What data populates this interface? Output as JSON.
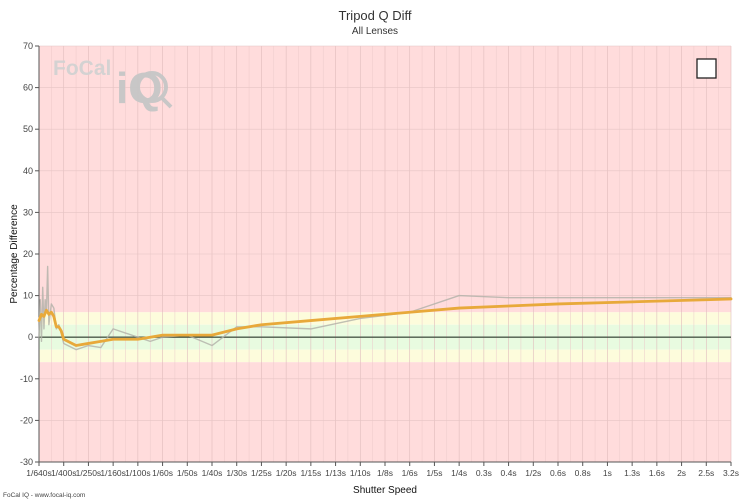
{
  "chart_data": {
    "type": "line",
    "title": "Tripod Q Diff",
    "subtitle": "All Lenses",
    "xlabel": "Shutter Speed",
    "ylabel": "Percentage Difference",
    "ylim": [
      -30,
      70
    ],
    "yticks": [
      70,
      60,
      50,
      40,
      30,
      20,
      10,
      0,
      -10,
      -20,
      -30
    ],
    "categories": [
      "1/640s",
      "1/400s",
      "1/250s",
      "1/160s",
      "1/100s",
      "1/60s",
      "1/50s",
      "1/40s",
      "1/30s",
      "1/25s",
      "1/20s",
      "1/15s",
      "1/13s",
      "1/10s",
      "1/8s",
      "1/6s",
      "1/5s",
      "1/4s",
      "0.3s",
      "0.4s",
      "1/2s",
      "0.6s",
      "0.8s",
      "1s",
      "1.3s",
      "1.6s",
      "2s",
      "2.5s",
      "3.2s"
    ],
    "bands": [
      {
        "from": 6,
        "to": 70,
        "color": "#ffdcdc"
      },
      {
        "from": 3,
        "to": 6,
        "color": "#fdfcdc"
      },
      {
        "from": -3,
        "to": 3,
        "color": "#e8fbe0"
      },
      {
        "from": -6,
        "to": -3,
        "color": "#fdfcdc"
      },
      {
        "from": -30,
        "to": -6,
        "color": "#ffdcdc"
      }
    ],
    "grid": true,
    "series": [
      {
        "color": "#b0b0a8",
        "x": [
          0,
          0.05,
          0.1,
          0.15,
          0.2,
          0.25,
          0.3,
          0.35,
          0.4,
          0.5,
          0.6,
          0.7,
          0.8,
          0.9,
          1.0,
          1.5,
          2.0,
          2.5,
          3.0,
          3.5,
          4.0,
          4.5,
          5.0,
          6.0,
          7.0,
          8.0,
          9.0,
          11.0,
          13.0,
          15.0,
          17.0,
          19.0,
          20.0,
          21.0,
          22.0,
          24.0,
          27.0,
          28.0
        ],
        "values": [
          0,
          9,
          -1,
          12,
          2,
          9,
          6,
          17,
          3,
          8,
          7,
          2,
          3,
          1,
          -1.5,
          -3,
          -2,
          -2.5,
          2,
          1,
          0,
          -1,
          0,
          0.5,
          -2,
          2.5,
          2.5,
          2,
          4.5,
          6,
          10,
          9.5,
          9.5,
          9.5,
          9.5,
          9.5,
          9.5,
          9.5
        ]
      },
      {
        "color": "#e8a93a",
        "x": [
          0,
          0.1,
          0.2,
          0.3,
          0.4,
          0.5,
          0.6,
          0.7,
          0.8,
          0.9,
          1.0,
          1.5,
          2.0,
          2.5,
          3.0,
          3.5,
          4.0,
          4.5,
          5.0,
          6.0,
          7.0,
          8.0,
          9.0,
          11.0,
          13.0,
          15.0,
          17.0,
          19.0,
          21.0,
          24.0,
          27.0,
          28.0
        ],
        "values": [
          4,
          5.5,
          5,
          6.5,
          5.5,
          6,
          5,
          2.5,
          2.5,
          1.5,
          -0.5,
          -2,
          -1.5,
          -1,
          -0.5,
          -0.5,
          -0.5,
          0,
          0.5,
          0.5,
          0.5,
          2,
          3,
          4,
          5,
          6,
          7,
          7.5,
          8,
          8.5,
          9,
          9.2
        ]
      }
    ]
  },
  "watermark": {
    "logo_small": "FoCal",
    "logo_big": "iQ"
  },
  "footer": "FoCal IQ - www.focal-iq.com",
  "legend_toggle": ""
}
